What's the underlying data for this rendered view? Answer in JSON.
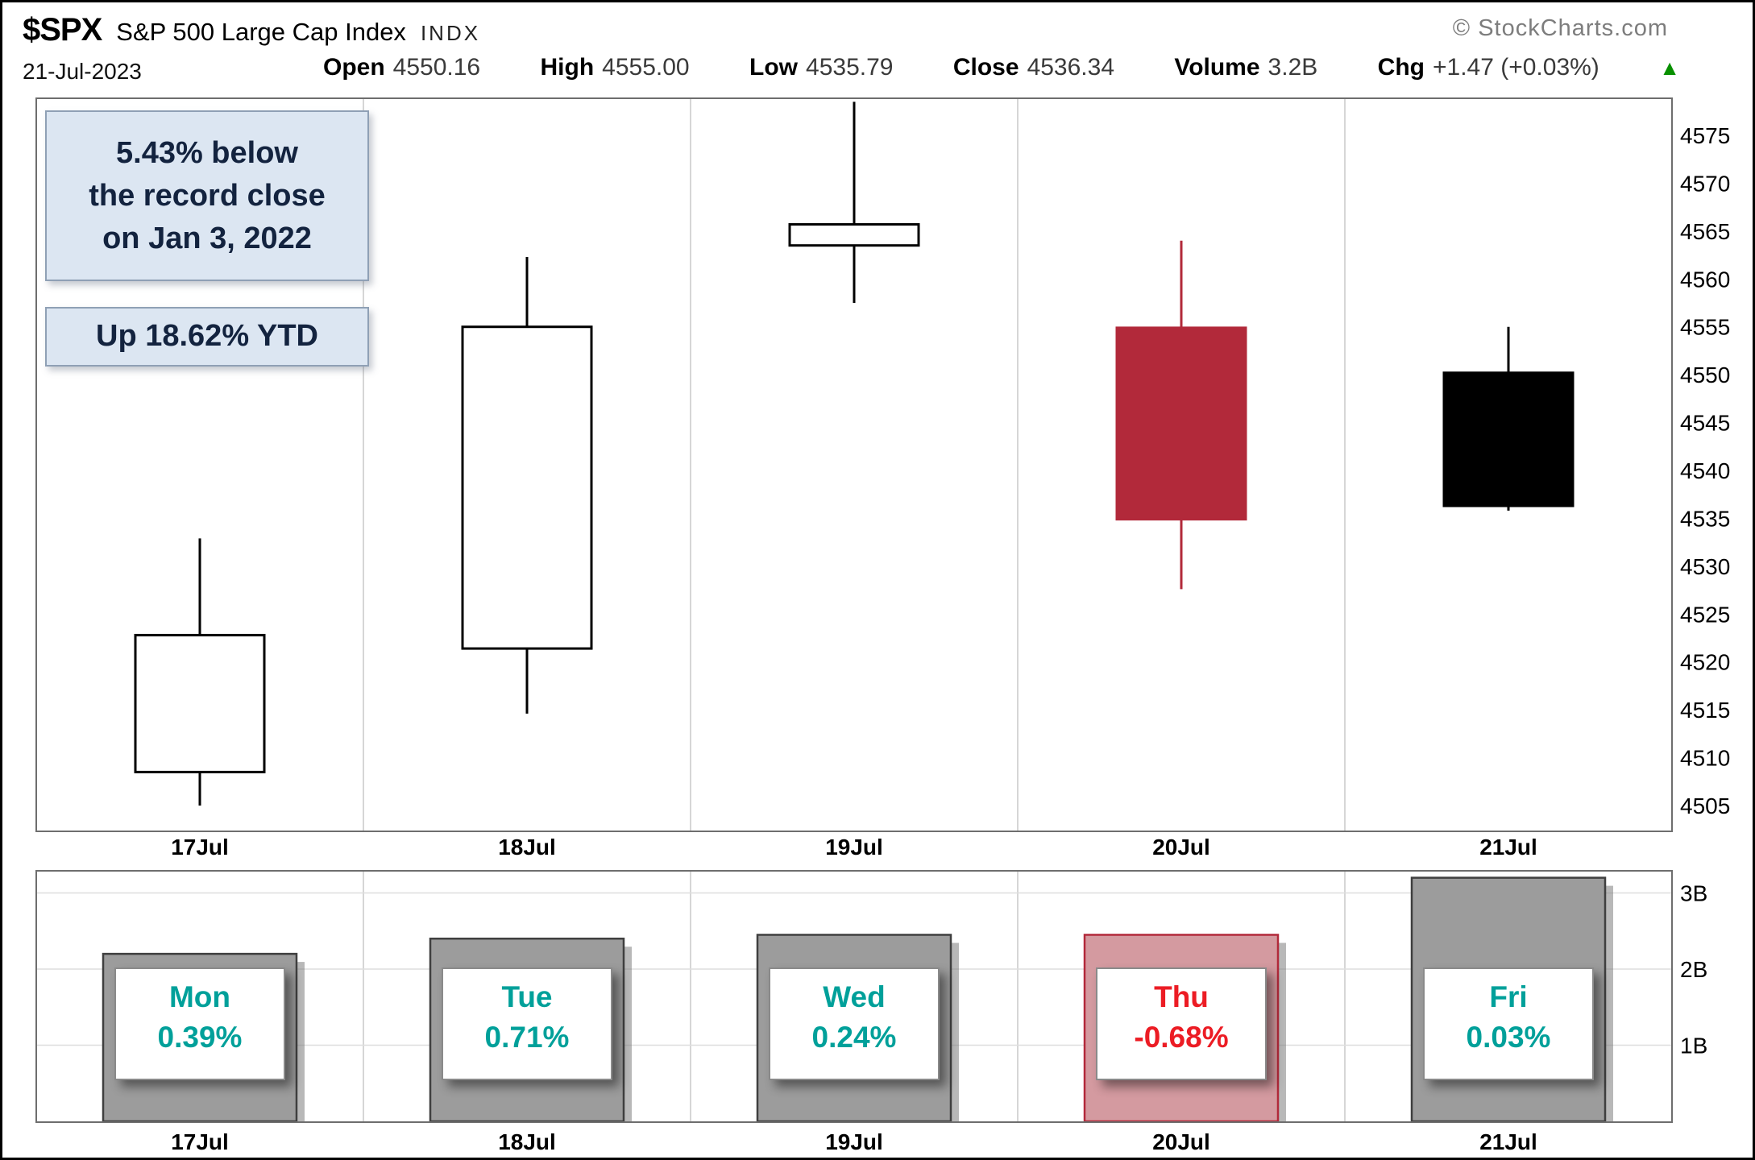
{
  "header": {
    "symbol": "$SPX",
    "name": "S&P 500 Large Cap Index",
    "exchange": "INDX",
    "copyright": "© StockCharts.com",
    "date": "21-Jul-2023",
    "quote": [
      {
        "label": "Open",
        "value": "4550.16"
      },
      {
        "label": "High",
        "value": "4555.00"
      },
      {
        "label": "Low",
        "value": "4535.79"
      },
      {
        "label": "Close",
        "value": "4536.34"
      },
      {
        "label": "Volume",
        "value": "3.2B"
      },
      {
        "label": "Chg",
        "value": "+1.47 (+0.03%)"
      }
    ],
    "chg_direction_icon": "▲"
  },
  "annotations": {
    "record_note_lines": [
      "5.43% below",
      "the record close",
      "on Jan 3, 2022"
    ],
    "ytd_note": "Up 18.62% YTD"
  },
  "chart_data": [
    {
      "type": "candlestick",
      "title": "$SPX daily price, week of 17-21 Jul 2023",
      "x": [
        "17Jul",
        "18Jul",
        "19Jul",
        "20Jul",
        "21Jul"
      ],
      "ohlc": [
        {
          "date": "17Jul",
          "open": 4508.5,
          "high": 4532.9,
          "low": 4505.0,
          "close": 4522.8,
          "style": "hollow"
        },
        {
          "date": "18Jul",
          "open": 4521.4,
          "high": 4562.3,
          "low": 4514.6,
          "close": 4555.0,
          "style": "hollow"
        },
        {
          "date": "19Jul",
          "open": 4563.5,
          "high": 4578.5,
          "low": 4557.5,
          "close": 4565.7,
          "style": "hollow"
        },
        {
          "date": "20Jul",
          "open": 4554.9,
          "high": 4564.0,
          "low": 4527.6,
          "close": 4534.9,
          "style": "filled_red"
        },
        {
          "date": "21Jul",
          "open": 4550.2,
          "high": 4555.0,
          "low": 4535.8,
          "close": 4536.3,
          "style": "filled_black"
        }
      ],
      "y_axis": {
        "min": 4505,
        "max": 4575,
        "tick_step": 5,
        "ticks": [
          4505,
          4510,
          4515,
          4520,
          4525,
          4530,
          4535,
          4540,
          4545,
          4550,
          4555,
          4560,
          4565,
          4570,
          4575
        ]
      },
      "grid": "vertical-day-separators",
      "legend": "none"
    },
    {
      "type": "bar",
      "title": "Volume (billions of shares)",
      "categories": [
        "17Jul",
        "18Jul",
        "19Jul",
        "20Jul",
        "21Jul"
      ],
      "values": [
        2.2,
        2.4,
        2.45,
        2.45,
        3.2
      ],
      "unit": "B",
      "styles": [
        "up",
        "up",
        "up",
        "down",
        "up"
      ],
      "y_ticks": [
        {
          "label": "1B",
          "value": 1
        },
        {
          "label": "2B",
          "value": 2
        },
        {
          "label": "3B",
          "value": 3
        }
      ],
      "ylim": [
        0,
        3.3
      ]
    }
  ],
  "day_labels": [
    {
      "day": "Mon",
      "pct": "0.39%",
      "color": "#00a09a"
    },
    {
      "day": "Tue",
      "pct": "0.71%",
      "color": "#00a09a"
    },
    {
      "day": "Wed",
      "pct": "0.24%",
      "color": "#00a09a"
    },
    {
      "day": "Thu",
      "pct": "-0.68%",
      "color": "#ec1c24"
    },
    {
      "day": "Fri",
      "pct": "0.03%",
      "color": "#00a09a"
    }
  ],
  "colors": {
    "accent_green": "#089000",
    "candle_red": "#b2293a",
    "candle_black": "#000000",
    "volume_bar": "#9c9c9c",
    "volume_bar_border": "#3f3f3f",
    "volume_bar_down": "#d49aa0",
    "note_bg": "#dce6f2",
    "note_text": "#13233f"
  }
}
